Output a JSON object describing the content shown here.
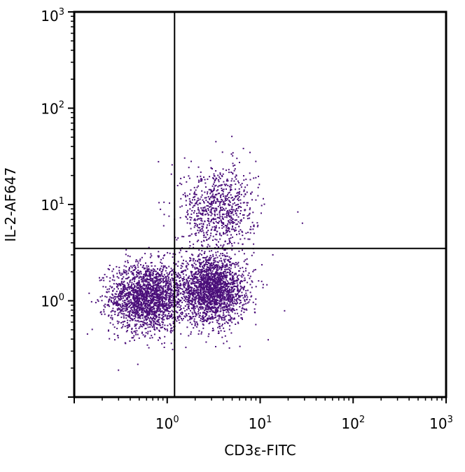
{
  "chart_data": {
    "type": "scatter",
    "xlabel": "CD3ε-FITC",
    "ylabel": "IL-2-AF647",
    "x_scale": "log",
    "y_scale": "log",
    "xlim": [
      0.1,
      1000
    ],
    "ylim": [
      0.1,
      1000
    ],
    "x_ticks": [
      {
        "base": "10",
        "exp": "0",
        "value": 1
      },
      {
        "base": "10",
        "exp": "1",
        "value": 10
      },
      {
        "base": "10",
        "exp": "2",
        "value": 100
      },
      {
        "base": "10",
        "exp": "3",
        "value": 1000
      }
    ],
    "y_ticks": [
      {
        "base": "10",
        "exp": "0",
        "value": 1
      },
      {
        "base": "10",
        "exp": "1",
        "value": 10
      },
      {
        "base": "10",
        "exp": "2",
        "value": 100
      },
      {
        "base": "10",
        "exp": "3",
        "value": 1000
      }
    ],
    "quadrant_gate": {
      "x": 1.2,
      "y": 3.5
    },
    "grid": false,
    "legend": false,
    "point_color": "#4B0F7A",
    "populations": [
      {
        "center_x": 0.6,
        "center_y": 1.1,
        "spread_log_x": 0.2,
        "spread_log_y": 0.18,
        "points": 2000
      },
      {
        "center_x": 3.0,
        "center_y": 1.3,
        "spread_log_x": 0.18,
        "spread_log_y": 0.17,
        "points": 2100
      },
      {
        "center_x": 3.5,
        "center_y": 9.0,
        "spread_log_x": 0.2,
        "spread_log_y": 0.23,
        "points": 800
      }
    ],
    "outliers": [
      {
        "x": 25,
        "y": 8.5
      },
      {
        "x": 28,
        "y": 6.5
      },
      {
        "x": 18,
        "y": 0.8
      },
      {
        "x": 12,
        "y": 0.4
      }
    ]
  }
}
